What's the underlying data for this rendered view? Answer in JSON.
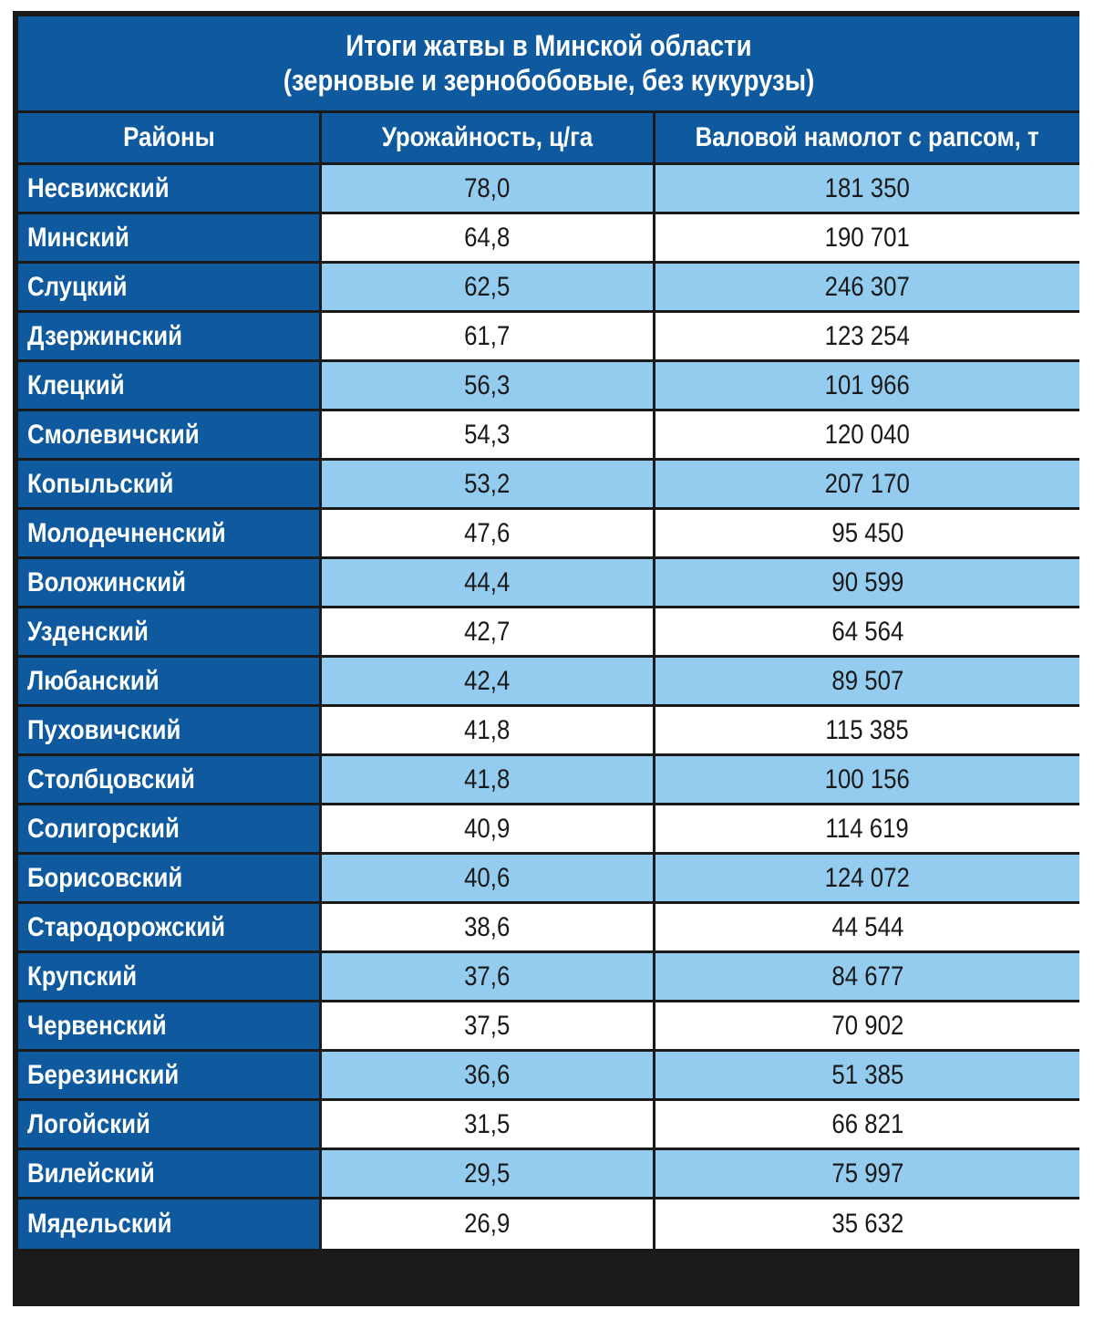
{
  "title": {
    "line1": "Итоги жатвы в Минской области",
    "line2": "(зерновые и зернобобовые, без кукурузы)"
  },
  "columns": [
    "Районы",
    "Урожайность, ц/га",
    "Валовой намолот с рапсом, т"
  ],
  "rows": [
    {
      "district": "Несвижский",
      "yield": "78,0",
      "harvest": "181 350"
    },
    {
      "district": "Минский",
      "yield": "64,8",
      "harvest": "190 701"
    },
    {
      "district": "Слуцкий",
      "yield": "62,5",
      "harvest": "246 307"
    },
    {
      "district": "Дзержинский",
      "yield": "61,7",
      "harvest": "123 254"
    },
    {
      "district": "Клецкий",
      "yield": "56,3",
      "harvest": "101 966"
    },
    {
      "district": "Смолевичский",
      "yield": "54,3",
      "harvest": "120 040"
    },
    {
      "district": "Копыльский",
      "yield": "53,2",
      "harvest": "207 170"
    },
    {
      "district": "Молодечненский",
      "yield": "47,6",
      "harvest": "95 450"
    },
    {
      "district": "Воложинский",
      "yield": "44,4",
      "harvest": "90 599"
    },
    {
      "district": "Узденский",
      "yield": "42,7",
      "harvest": "64 564"
    },
    {
      "district": "Любанский",
      "yield": "42,4",
      "harvest": "89 507"
    },
    {
      "district": "Пуховичский",
      "yield": "41,8",
      "harvest": "115 385"
    },
    {
      "district": "Столбцовский",
      "yield": "41,8",
      "harvest": "100 156"
    },
    {
      "district": "Солигорский",
      "yield": "40,9",
      "harvest": "114 619"
    },
    {
      "district": "Борисовский",
      "yield": "40,6",
      "harvest": "124 072"
    },
    {
      "district": "Стародорожский",
      "yield": "38,6",
      "harvest": "44 544"
    },
    {
      "district": "Крупский",
      "yield": "37,6",
      "harvest": "84 677"
    },
    {
      "district": "Червенский",
      "yield": "37,5",
      "harvest": "70 902"
    },
    {
      "district": "Березинский",
      "yield": "36,6",
      "harvest": "51 385"
    },
    {
      "district": "Логойский",
      "yield": "31,5",
      "harvest": "66 821"
    },
    {
      "district": "Вилейский",
      "yield": "29,5",
      "harvest": "75 997"
    },
    {
      "district": "Мядельский",
      "yield": "26,9",
      "harvest": "35 632"
    }
  ],
  "colors": {
    "header_blue": "#0f5a9e",
    "row_light_blue": "#93ccef",
    "row_white": "#ffffff",
    "border": "#1a1a1a"
  }
}
